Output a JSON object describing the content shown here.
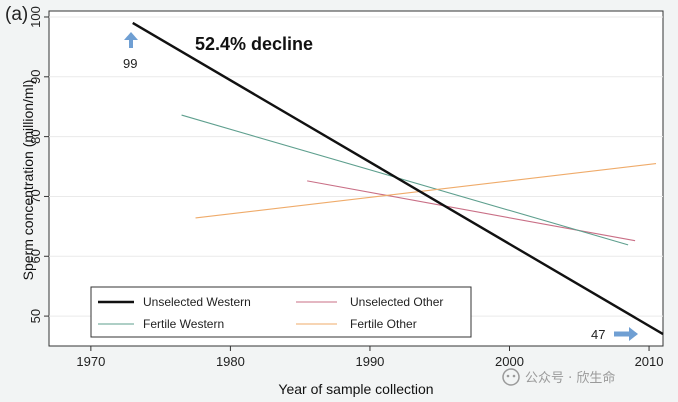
{
  "panel_label": "(a)",
  "annotation": "52.4% decline",
  "watermark": "公众号 · 欣生命",
  "colors": {
    "unselected_western": "#111111",
    "unselected_other": "#c96f86",
    "fertile_western": "#5e9f8e",
    "fertile_other": "#efab6a",
    "arrow": "#6f9fd3"
  },
  "chart_data": {
    "type": "line",
    "title": "",
    "xlabel": "Year of sample collection",
    "ylabel": "Sperm concentration (million/ml)",
    "xlim": [
      1967,
      2011
    ],
    "ylim": [
      45,
      101
    ],
    "xticks": [
      1970,
      1980,
      1990,
      2000,
      2010
    ],
    "yticks": [
      50,
      60,
      70,
      80,
      90,
      100
    ],
    "grid": true,
    "legend_position": "bottom-left",
    "series": [
      {
        "name": "Unselected Western",
        "key": "unselected_western",
        "width": 2.4,
        "points": [
          [
            1973,
            99
          ],
          [
            2011,
            47
          ]
        ]
      },
      {
        "name": "Unselected Other",
        "key": "unselected_other",
        "width": 1.1,
        "points": [
          [
            1985.5,
            72.6
          ],
          [
            2009,
            62.6
          ]
        ]
      },
      {
        "name": "Fertile Western",
        "key": "fertile_western",
        "width": 1.1,
        "points": [
          [
            1976.5,
            83.6
          ],
          [
            2008.5,
            61.9
          ]
        ]
      },
      {
        "name": "Fertile Other",
        "key": "fertile_other",
        "width": 1.1,
        "points": [
          [
            1977.5,
            66.4
          ],
          [
            2010.5,
            75.5
          ]
        ]
      }
    ],
    "annotations": [
      {
        "text": "99",
        "x": 1973,
        "y": 99,
        "arrow": "up"
      },
      {
        "text": "47",
        "x": 2011,
        "y": 47,
        "arrow": "right"
      }
    ]
  }
}
